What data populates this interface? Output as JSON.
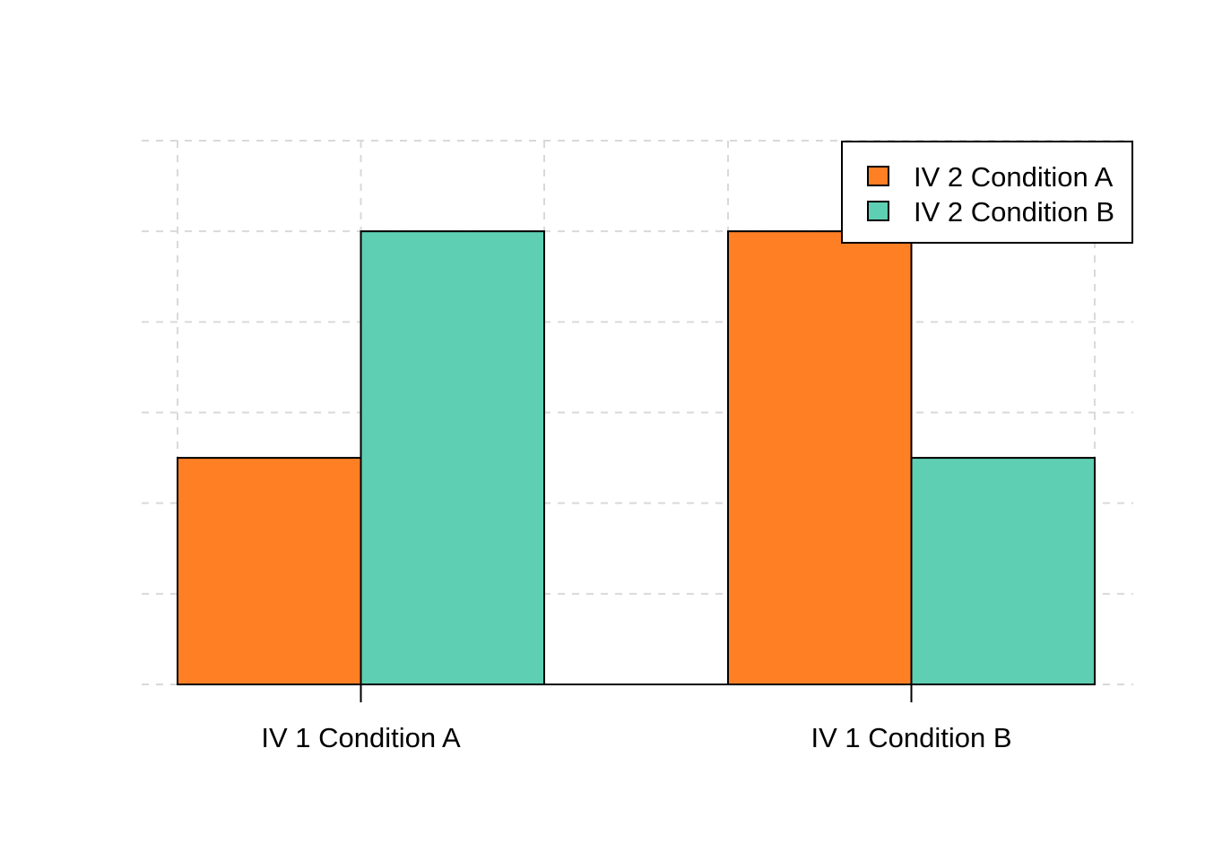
{
  "chart_data": {
    "type": "bar",
    "categories": [
      "IV 1 Condition A",
      "IV 1 Condition B"
    ],
    "series": [
      {
        "name": "IV 2 Condition A",
        "values": [
          2.5,
          5
        ],
        "color": "#FF7F24"
      },
      {
        "name": "IV 2 Condition B",
        "values": [
          5,
          2.5
        ],
        "color": "#5ECFB2"
      }
    ],
    "title": "",
    "xlabel": "",
    "ylabel": "",
    "ylim": [
      0,
      6
    ],
    "grid": true,
    "legend_position": "top-right"
  }
}
